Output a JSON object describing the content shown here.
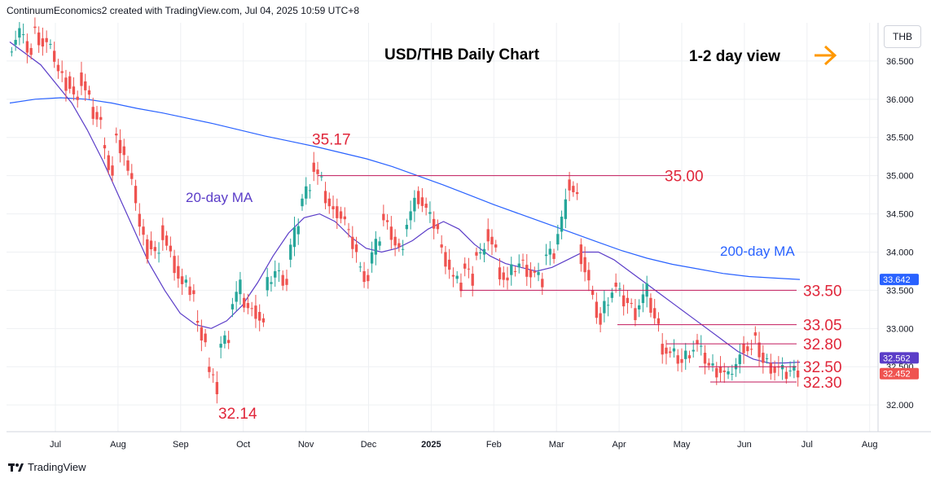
{
  "header": {
    "text": "ContinuumEconomics2 created with TradingView.com, Jul 04, 2025 10:59 UTC+8"
  },
  "currency": "THB",
  "footer": {
    "brand": "TradingView",
    "logo": "tradingview-logo-icon"
  },
  "colors": {
    "up": "#26a69a",
    "down": "#ef5350",
    "level": "#c2185b",
    "ma20": "#5b3dc8",
    "ma200": "#2962ff",
    "arrow": "#ff9800",
    "last_price_bg": "#ef5350",
    "ma200_tag_bg": "#2962ff",
    "ma20_tag_bg": "#5b3dc8"
  },
  "chart_data": {
    "type": "candlestick",
    "title": "USD/THB Daily Chart",
    "annotation": "1-2 day view",
    "arrow_icon": "right-arrow-icon",
    "y_ticks": [
      "36.500",
      "36.000",
      "35.500",
      "35.000",
      "34.500",
      "34.000",
      "33.500",
      "33.000",
      "32.500",
      "32.000"
    ],
    "y_tick_values": [
      36.5,
      36.0,
      35.5,
      35.0,
      34.5,
      34.0,
      33.5,
      33.0,
      32.5,
      32.0
    ],
    "x_ticks": [
      "Jul",
      "Aug",
      "Sep",
      "Oct",
      "Nov",
      "Dec",
      "2025",
      "Feb",
      "Mar",
      "Apr",
      "May",
      "Jun",
      "Jul",
      "Aug"
    ],
    "ylim": [
      31.65,
      37.0
    ],
    "levels": [
      {
        "label": "35.00",
        "value": 35.0
      },
      {
        "label": "33.50",
        "value": 33.5
      },
      {
        "label": "33.05",
        "value": 33.05
      },
      {
        "label": "32.80",
        "value": 32.8
      },
      {
        "label": "32.50",
        "value": 32.5
      },
      {
        "label": "32.30",
        "value": 32.3
      }
    ],
    "peaks": [
      {
        "label": "35.17",
        "value": 35.17
      },
      {
        "label": "32.14",
        "value": 32.14
      }
    ],
    "ma_labels": {
      "ma20": "20-day MA",
      "ma200": "200-day MA"
    },
    "price_tags": {
      "ma200": "33.642",
      "ma20": "32.562",
      "last": "32.452"
    },
    "price_tag_values": {
      "ma200": 33.642,
      "ma20": 32.562,
      "last": 32.452
    },
    "price_path": [
      [
        36.62,
        36.9
      ],
      [
        36.85,
        36.58
      ],
      [
        36.95,
        36.72
      ],
      [
        36.8,
        36.55
      ],
      [
        36.45,
        36.2
      ],
      [
        36.3,
        35.9
      ],
      [
        36.35,
        36.0
      ],
      [
        35.9,
        35.7
      ],
      [
        35.4,
        35.0
      ],
      [
        35.55,
        35.3
      ],
      [
        35.2,
        34.7
      ],
      [
        34.5,
        34.0
      ],
      [
        34.15,
        33.9
      ],
      [
        34.35,
        33.95
      ],
      [
        33.95,
        33.55
      ],
      [
        33.6,
        33.45
      ],
      [
        33.1,
        32.85
      ],
      [
        32.5,
        32.2
      ],
      [
        32.75,
        32.9
      ],
      [
        33.25,
        33.55
      ],
      [
        33.4,
        33.2
      ],
      [
        33.3,
        33.05
      ],
      [
        33.5,
        33.75
      ],
      [
        33.75,
        33.6
      ],
      [
        33.9,
        34.4
      ],
      [
        34.6,
        34.9
      ],
      [
        35.17,
        34.9
      ],
      [
        34.8,
        34.5
      ],
      [
        34.6,
        34.4
      ],
      [
        34.3,
        34.0
      ],
      [
        33.8,
        33.65
      ],
      [
        33.85,
        34.2
      ],
      [
        34.5,
        34.25
      ],
      [
        34.2,
        33.95
      ],
      [
        34.3,
        34.65
      ],
      [
        34.8,
        34.55
      ],
      [
        34.5,
        34.3
      ],
      [
        34.1,
        33.8
      ],
      [
        33.7,
        33.55
      ],
      [
        33.85,
        33.65
      ],
      [
        34.0,
        33.95
      ],
      [
        34.3,
        34.0
      ],
      [
        33.8,
        33.6
      ],
      [
        33.7,
        33.85
      ],
      [
        33.9,
        33.7
      ],
      [
        33.75,
        33.6
      ],
      [
        33.95,
        34.0
      ],
      [
        34.1,
        34.6
      ],
      [
        34.95,
        34.7
      ],
      [
        34.1,
        33.6
      ],
      [
        33.5,
        33.05
      ],
      [
        33.2,
        33.5
      ],
      [
        33.6,
        33.35
      ],
      [
        33.4,
        33.2
      ],
      [
        33.25,
        33.5
      ],
      [
        33.4,
        33.0
      ],
      [
        32.8,
        32.65
      ],
      [
        32.7,
        32.55
      ],
      [
        32.6,
        32.75
      ],
      [
        32.85,
        32.6
      ],
      [
        32.55,
        32.45
      ],
      [
        32.5,
        32.35
      ],
      [
        32.4,
        32.6
      ],
      [
        32.8,
        32.7
      ],
      [
        32.95,
        32.55
      ],
      [
        32.6,
        32.45
      ],
      [
        32.5,
        32.4
      ],
      [
        32.45,
        32.45
      ]
    ],
    "ma20_path": [
      36.75,
      36.6,
      36.45,
      36.2,
      35.95,
      35.6,
      35.2,
      34.75,
      34.3,
      33.85,
      33.5,
      33.2,
      33.05,
      33.0,
      33.1,
      33.3,
      33.6,
      33.95,
      34.25,
      34.45,
      34.5,
      34.4,
      34.2,
      34.05,
      34.0,
      34.05,
      34.15,
      34.3,
      34.4,
      34.3,
      34.1,
      33.95,
      33.85,
      33.8,
      33.75,
      33.8,
      33.9,
      34.0,
      34.0,
      33.9,
      33.75,
      33.6,
      33.45,
      33.3,
      33.15,
      33.0,
      32.85,
      32.7,
      32.6,
      32.55,
      32.55,
      32.56
    ],
    "ma200_path": [
      35.95,
      36.0,
      36.02,
      36.0,
      35.95,
      35.88,
      35.82,
      35.75,
      35.68,
      35.6,
      35.52,
      35.45,
      35.38,
      35.3,
      35.22,
      35.12,
      35.0,
      34.88,
      34.75,
      34.62,
      34.5,
      34.38,
      34.26,
      34.14,
      34.02,
      33.92,
      33.84,
      33.78,
      33.72,
      33.68,
      33.66,
      33.642
    ]
  }
}
